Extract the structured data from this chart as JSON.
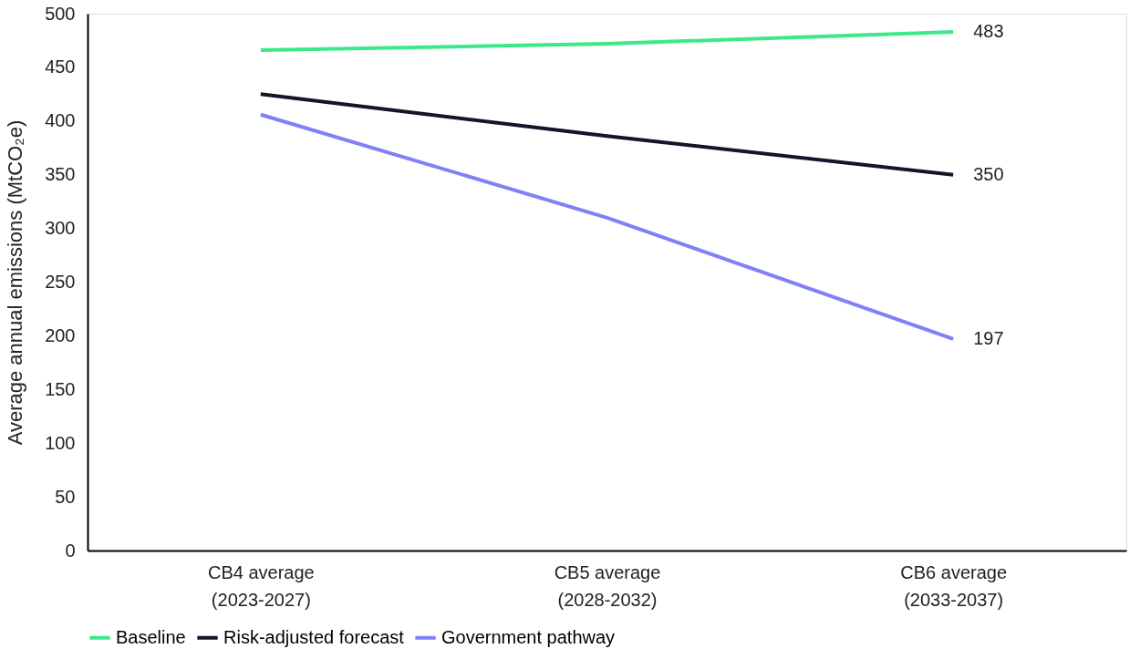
{
  "chart_data": {
    "type": "line",
    "ylabel": "Average annual emissions (MtCO₂e)",
    "categories": [
      "CB4 average (2023-2027)",
      "CB5 average (2028-2032)",
      "CB6 average (2033-2037)"
    ],
    "ylim": [
      0,
      500
    ],
    "yticks": [
      0,
      50,
      100,
      150,
      200,
      250,
      300,
      350,
      400,
      450,
      500
    ],
    "grid": false,
    "legend": "bottom",
    "marker": "none",
    "line_style": "solid",
    "series": [
      {
        "name": "Baseline",
        "color": "#3de88a",
        "values": [
          466,
          472,
          483
        ],
        "value_labels": [
          null,
          null,
          "483"
        ]
      },
      {
        "name": "Risk-adjusted forecast",
        "color": "#15152a",
        "values": [
          425,
          386,
          350
        ],
        "value_labels": [
          null,
          null,
          "350"
        ]
      },
      {
        "name": "Government pathway",
        "color": "#8080f8",
        "values": [
          406,
          310,
          197
        ],
        "value_labels": [
          null,
          null,
          "197"
        ]
      }
    ]
  }
}
